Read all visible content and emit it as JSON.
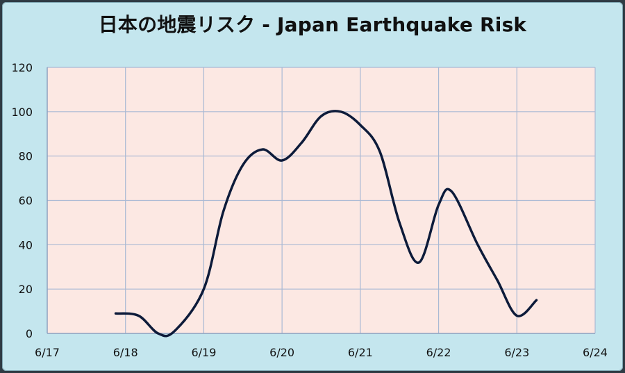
{
  "chart_data": {
    "type": "line",
    "title": "日本の地震リスク - Japan Earthquake Risk",
    "xlabel": "",
    "ylabel": "",
    "x_ticks": [
      "6/17",
      "6/18",
      "6/19",
      "6/20",
      "6/21",
      "6/22",
      "6/23",
      "6/24"
    ],
    "y_ticks": [
      "0",
      "20",
      "40",
      "60",
      "80",
      "100",
      "120"
    ],
    "ylim": [
      0,
      120
    ],
    "grid": true,
    "legend": "none",
    "series": [
      {
        "color": "#0d1b3a",
        "points": [
          {
            "x": "6/17 21:00",
            "y": 9
          },
          {
            "x": "6/18 04:00",
            "y": 8
          },
          {
            "x": "6/18 10:00",
            "y": 0
          },
          {
            "x": "6/18 15:00",
            "y": 1
          },
          {
            "x": "6/19 00:00",
            "y": 20
          },
          {
            "x": "6/19 06:00",
            "y": 55
          },
          {
            "x": "6/19 12:00",
            "y": 76
          },
          {
            "x": "6/19 18:00",
            "y": 83
          },
          {
            "x": "6/20 00:00",
            "y": 78
          },
          {
            "x": "6/20 06:00",
            "y": 86
          },
          {
            "x": "6/20 12:00",
            "y": 98
          },
          {
            "x": "6/20 18:00",
            "y": 100
          },
          {
            "x": "6/21 00:00",
            "y": 94
          },
          {
            "x": "6/21 06:00",
            "y": 82
          },
          {
            "x": "6/21 12:00",
            "y": 50
          },
          {
            "x": "6/21 18:00",
            "y": 32
          },
          {
            "x": "6/22 00:00",
            "y": 58
          },
          {
            "x": "6/22 04:00",
            "y": 64
          },
          {
            "x": "6/22 12:00",
            "y": 40
          },
          {
            "x": "6/22 18:00",
            "y": 24
          },
          {
            "x": "6/23 00:00",
            "y": 8
          },
          {
            "x": "6/23 06:00",
            "y": 15
          }
        ]
      }
    ]
  },
  "colors": {
    "plot_background": "#fce8e3",
    "grid": "#a9b9d4",
    "line": "#0d1b3a",
    "frame": "#c4e6ee"
  }
}
